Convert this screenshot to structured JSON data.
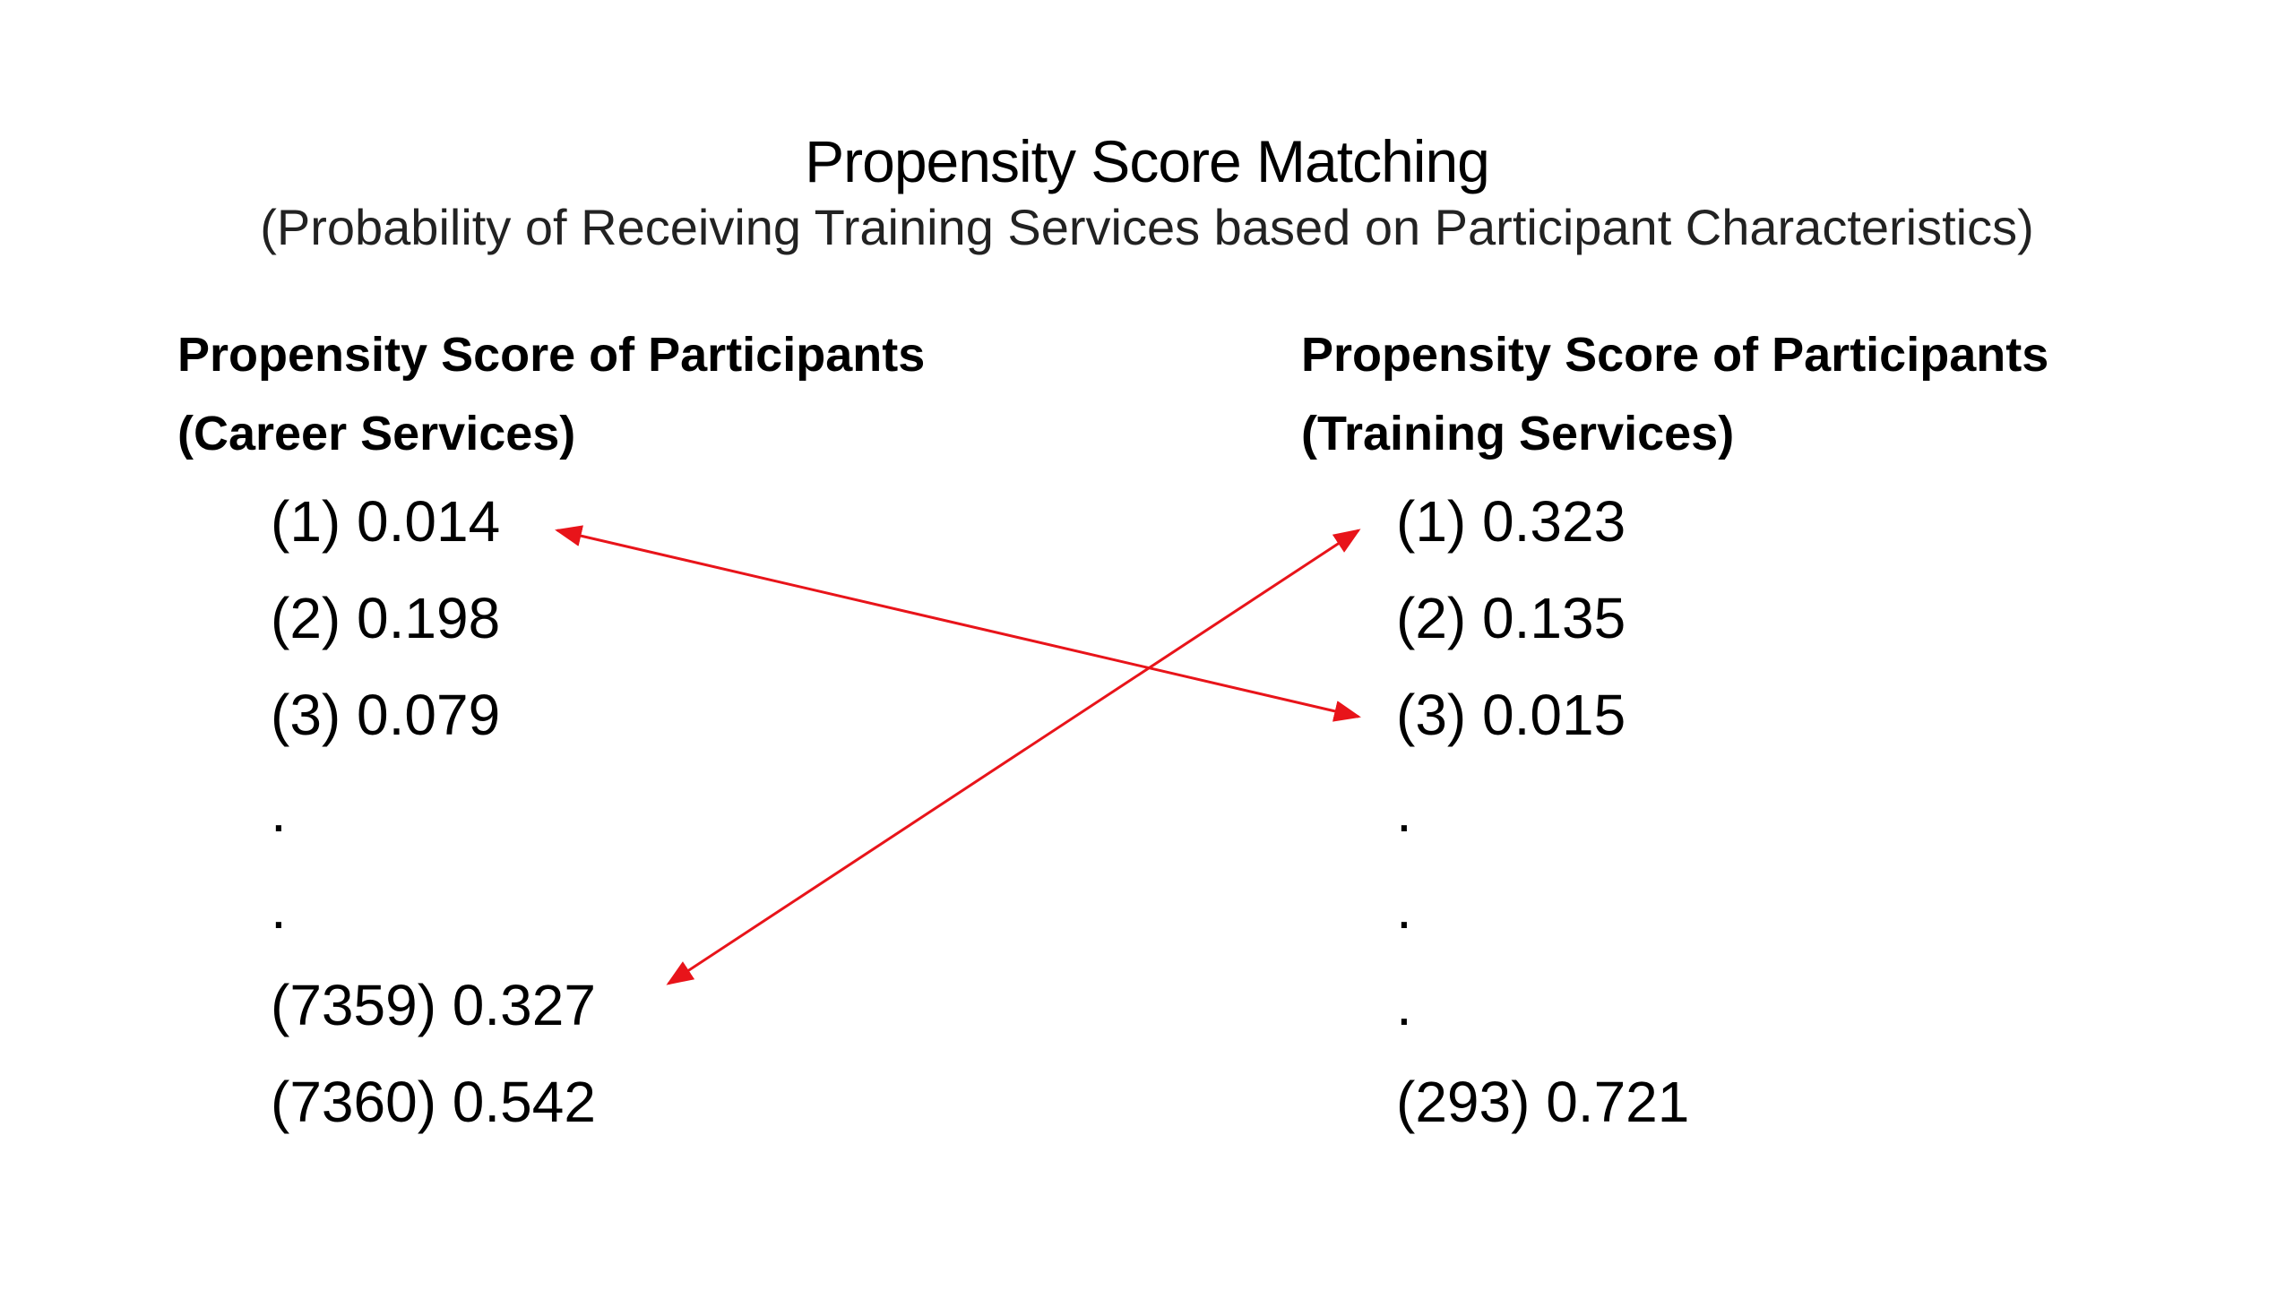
{
  "title": "Propensity Score Matching",
  "subtitle": "(Probability of Receiving Training Services based on Participant Characteristics)",
  "left": {
    "heading_line1": "Propensity Score of Participants",
    "heading_line2": "(Career Services)",
    "items": [
      "(1) 0.014",
      "(2) 0.198",
      "(3) 0.079",
      ".",
      ".",
      "(7359) 0.327",
      "(7360) 0.542"
    ]
  },
  "right": {
    "heading_line1": "Propensity Score of Participants",
    "heading_line2": "(Training Services)",
    "items": [
      "(1) 0.323",
      "(2) 0.135",
      "(3) 0.015",
      ".",
      ".",
      ".",
      "(293) 0.721"
    ]
  },
  "matches": [
    {
      "from": "left.items.0",
      "to": "right.items.2"
    },
    {
      "from": "left.items.5",
      "to": "right.items.0"
    }
  ],
  "colors": {
    "arrow": "#e8141a"
  }
}
